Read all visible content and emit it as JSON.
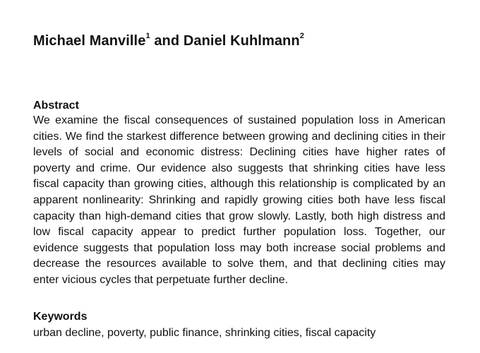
{
  "authors": {
    "author1_name": "Michael Manville",
    "author1_affil": "1",
    "connector": " and ",
    "author2_name": "Daniel Kuhlmann",
    "author2_affil": "2"
  },
  "abstract": {
    "heading": "Abstract",
    "text": "We examine the fiscal consequences of sustained population loss in American cities. We find the starkest difference between growing and declining cities in their levels of social and economic distress: Declining cities have higher rates of poverty and crime. Our evidence also suggests that shrinking cities have less fiscal capacity than growing cities, although this relationship is complicated by an apparent nonlinearity: Shrinking and rapidly growing cities both have less fiscal capacity than high-demand cities that grow slowly. Lastly, both high distress and low fiscal capacity appear to predict further population loss. Together, our evidence suggests that population loss may both increase social problems and decrease the resources available to solve them, and that declining cities may enter vicious cycles that perpetuate further decline."
  },
  "keywords": {
    "heading": "Keywords",
    "text": "urban decline, poverty, public finance, shrinking cities, fiscal capacity"
  }
}
